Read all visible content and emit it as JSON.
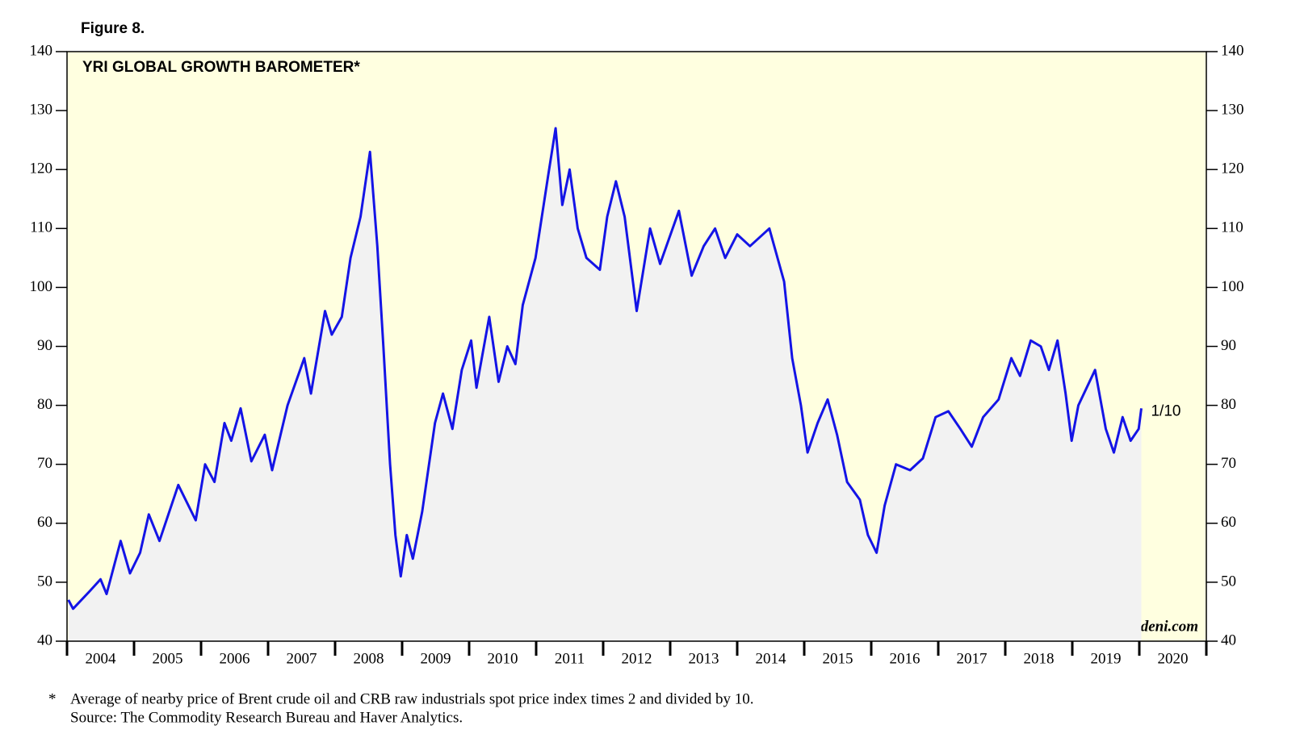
{
  "chart_data": {
    "type": "line",
    "figure_label": "Figure 8.",
    "title": "YRI GLOBAL GROWTH BAROMETER*",
    "x": [
      2004.02,
      2004.09,
      2004.34,
      2004.5,
      2004.59,
      2004.8,
      2004.94,
      2005.09,
      2005.22,
      2005.38,
      2005.66,
      2005.92,
      2006.06,
      2006.2,
      2006.35,
      2006.45,
      2006.59,
      2006.75,
      2006.95,
      2007.06,
      2007.29,
      2007.54,
      2007.64,
      2007.85,
      2007.95,
      2008.1,
      2008.23,
      2008.38,
      2008.52,
      2008.63,
      2008.72,
      2008.82,
      2008.9,
      2008.98,
      2009.07,
      2009.16,
      2009.3,
      2009.49,
      2009.61,
      2009.75,
      2009.89,
      2010.03,
      2010.11,
      2010.3,
      2010.44,
      2010.57,
      2010.69,
      2010.8,
      2010.99,
      2011.18,
      2011.29,
      2011.39,
      2011.5,
      2011.62,
      2011.75,
      2011.95,
      2012.06,
      2012.19,
      2012.32,
      2012.5,
      2012.6,
      2012.7,
      2012.85,
      2013.13,
      2013.32,
      2013.5,
      2013.67,
      2013.82,
      2014.0,
      2014.19,
      2014.48,
      2014.7,
      2014.82,
      2014.95,
      2015.05,
      2015.2,
      2015.35,
      2015.49,
      2015.64,
      2015.83,
      2015.95,
      2016.08,
      2016.2,
      2016.37,
      2016.58,
      2016.77,
      2016.96,
      2017.15,
      2017.33,
      2017.5,
      2017.67,
      2017.9,
      2018.09,
      2018.22,
      2018.38,
      2018.53,
      2018.65,
      2018.78,
      2018.9,
      2018.99,
      2019.09,
      2019.34,
      2019.5,
      2019.62,
      2019.75,
      2019.87,
      2019.99,
      2020.03
    ],
    "series": [
      {
        "name": "YRI Global Growth Barometer",
        "color": "#1414e6",
        "values": [
          47,
          45.5,
          48.5,
          50.5,
          48,
          57,
          51.5,
          55,
          61.5,
          57,
          66.5,
          60.5,
          70,
          67,
          77,
          74,
          79.5,
          70.5,
          75,
          69,
          80,
          88,
          82,
          96,
          92,
          95,
          105,
          112,
          123,
          107,
          90,
          70,
          58,
          51,
          58,
          54,
          62,
          77,
          82,
          76,
          86,
          91,
          83,
          95,
          84,
          90,
          87,
          97,
          105,
          119,
          127,
          114,
          120,
          110,
          105,
          103,
          112,
          118,
          112,
          96,
          103,
          110,
          104,
          113,
          102,
          107,
          110,
          105,
          109,
          107,
          110,
          101,
          88,
          80,
          72,
          77,
          81,
          75,
          67,
          64,
          58,
          55,
          63,
          70,
          69,
          71,
          78,
          79,
          76,
          73,
          78,
          81,
          88,
          85,
          91,
          90,
          86,
          91,
          82,
          74,
          80,
          86,
          76,
          72,
          78,
          74,
          76,
          79.5
        ]
      }
    ],
    "end_label": "1/10",
    "xlim": [
      2004,
      2021
    ],
    "xticks": [
      {
        "value": 2004.5,
        "label": "2004"
      },
      {
        "value": 2005.5,
        "label": "2005"
      },
      {
        "value": 2006.5,
        "label": "2006"
      },
      {
        "value": 2007.5,
        "label": "2007"
      },
      {
        "value": 2008.5,
        "label": "2008"
      },
      {
        "value": 2009.5,
        "label": "2009"
      },
      {
        "value": 2010.5,
        "label": "2010"
      },
      {
        "value": 2011.5,
        "label": "2011"
      },
      {
        "value": 2012.5,
        "label": "2012"
      },
      {
        "value": 2013.5,
        "label": "2013"
      },
      {
        "value": 2014.5,
        "label": "2014"
      },
      {
        "value": 2015.5,
        "label": "2015"
      },
      {
        "value": 2016.5,
        "label": "2016"
      },
      {
        "value": 2017.5,
        "label": "2017"
      },
      {
        "value": 2018.5,
        "label": "2018"
      },
      {
        "value": 2019.5,
        "label": "2019"
      },
      {
        "value": 2020.5,
        "label": "2020"
      }
    ],
    "xtick_marks": [
      2004,
      2005,
      2006,
      2007,
      2008,
      2009,
      2010,
      2011,
      2012,
      2013,
      2014,
      2015,
      2016,
      2017,
      2018,
      2019,
      2020,
      2021
    ],
    "ylim": [
      40,
      140
    ],
    "yticks": [
      40,
      50,
      60,
      70,
      80,
      90,
      100,
      110,
      120,
      130,
      140
    ],
    "watermark": "yardeni.com",
    "footnote_marker": "*",
    "footnote": "Average of nearby price of Brent crude oil and CRB raw industrials spot price index times 2 and divided by 10.",
    "source": "Source: The Commodity Research Bureau and Haver Analytics."
  }
}
